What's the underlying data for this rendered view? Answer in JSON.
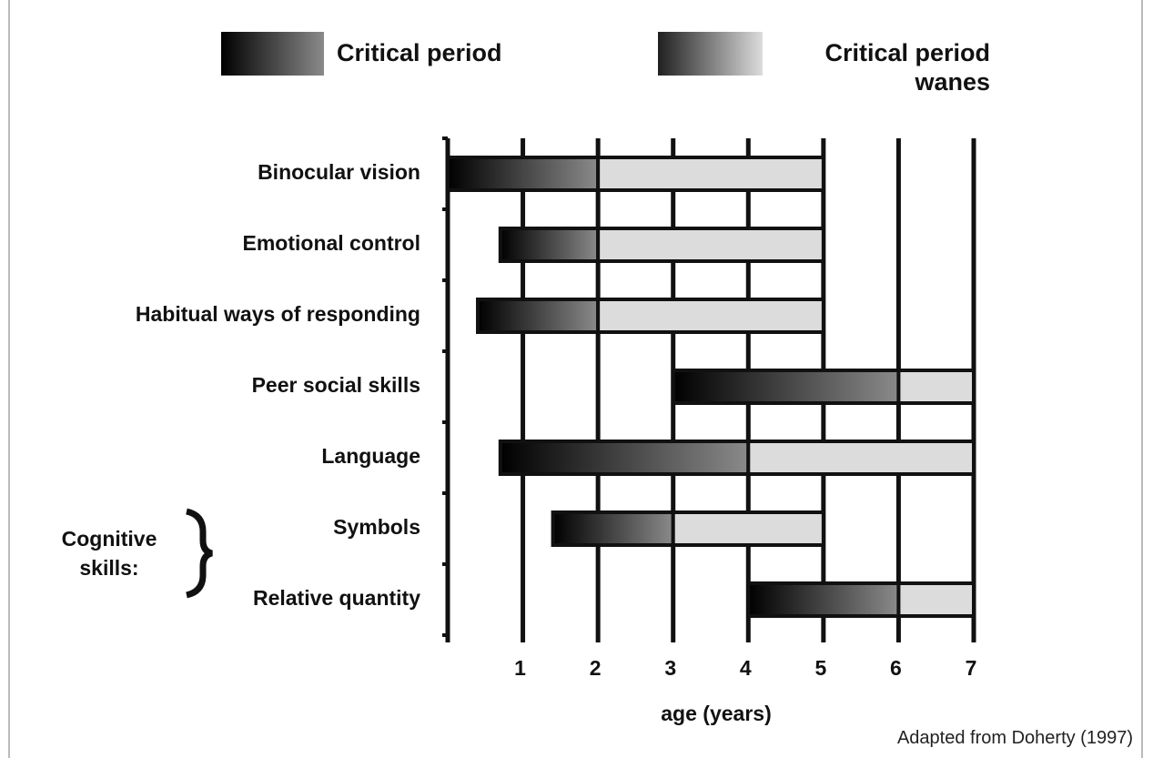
{
  "chart_data": {
    "type": "range-bar",
    "categories": [
      "Binocular vision",
      "Emotional control",
      "Habitual ways of responding",
      "Peer social skills",
      "Language",
      "Symbols",
      "Relative quantity"
    ],
    "series": [
      {
        "name": "Critical period",
        "color": "#000000",
        "start": [
          0,
          0.7,
          0.4,
          3,
          0.7,
          1.4,
          4
        ],
        "end": [
          2,
          2,
          2,
          6,
          4,
          3,
          6
        ]
      },
      {
        "name": "Critical period wanes",
        "color": "#dcdcdc",
        "start": [
          2,
          2,
          2,
          6,
          4,
          3,
          6
        ],
        "end": [
          5,
          5,
          5,
          7,
          7,
          5,
          7
        ]
      }
    ],
    "xlim": [
      0,
      7
    ],
    "xticks": [
      1,
      2,
      3,
      4,
      5,
      6,
      7
    ],
    "grid": true,
    "xlabel": "age (years)",
    "annotation": "Cognitive skills:",
    "source": "Adapted from Doherty (1997)"
  }
}
